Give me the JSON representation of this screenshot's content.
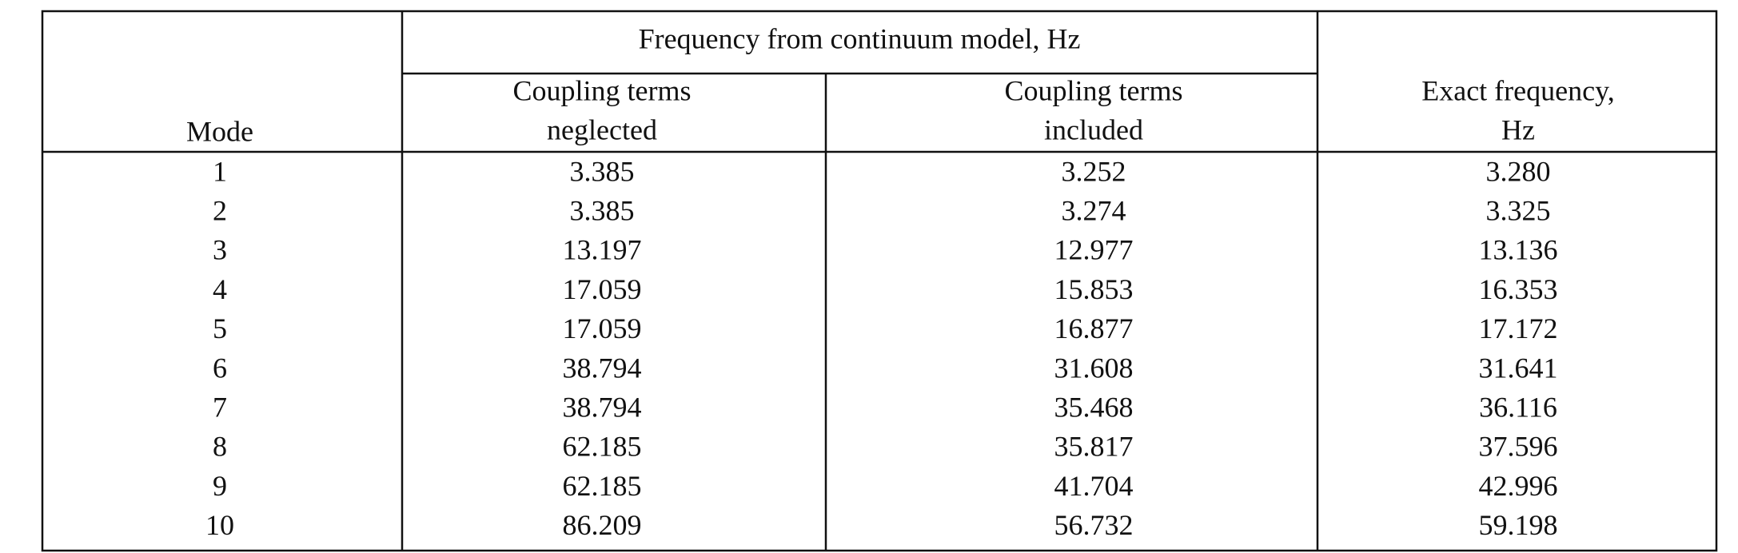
{
  "table": {
    "header": {
      "mode": "Mode",
      "group": "Frequency from continuum model, Hz",
      "columns": [
        {
          "lines": [
            "Coupling terms",
            "neglected"
          ]
        },
        {
          "lines": [
            "Coupling terms",
            "included"
          ]
        },
        {
          "lines": [
            "Exact frequency,",
            "Hz"
          ]
        }
      ]
    },
    "rows": [
      [
        "1",
        "3.385",
        "3.252",
        "3.280"
      ],
      [
        "2",
        "3.385",
        "3.274",
        "3.325"
      ],
      [
        "3",
        "13.197",
        "12.977",
        "13.136"
      ],
      [
        "4",
        "17.059",
        "15.853",
        "16.353"
      ],
      [
        "5",
        "17.059",
        "16.877",
        "17.172"
      ],
      [
        "6",
        "38.794",
        "31.608",
        "31.641"
      ],
      [
        "7",
        "38.794",
        "35.468",
        "36.116"
      ],
      [
        "8",
        "62.185",
        "35.817",
        "37.596"
      ],
      [
        "9",
        "62.185",
        "41.704",
        "42.996"
      ],
      [
        "10",
        "86.209",
        "56.732",
        "59.198"
      ]
    ]
  }
}
